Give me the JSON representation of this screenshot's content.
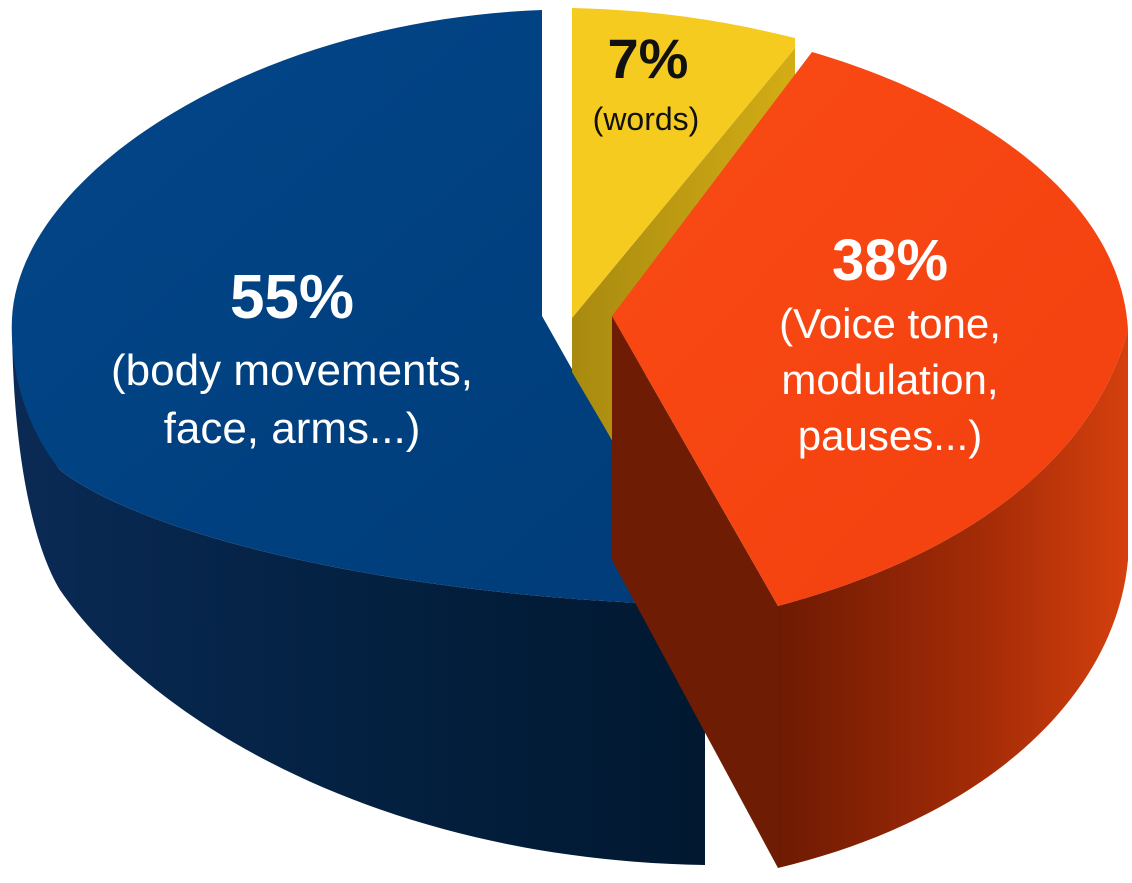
{
  "chart_data": {
    "type": "pie",
    "style": "3d-exploded",
    "slices": [
      {
        "key": "words",
        "value": 7,
        "percent_label": "7%",
        "desc": [
          "(words)"
        ],
        "color": "#F5CB1F",
        "side_color": "#C9A412",
        "text_color": "#111111"
      },
      {
        "key": "voice",
        "value": 38,
        "percent_label": "38%",
        "desc": [
          "(Voice tone,",
          "modulation,",
          "pauses...)"
        ],
        "color": "#F84412",
        "side_color": "#8E2406",
        "text_color": "#ffffff"
      },
      {
        "key": "body",
        "value": 55,
        "percent_label": "55%",
        "desc": [
          "(body movements,",
          "face, arms...)"
        ],
        "color": "#00417F",
        "side_color": "#042347",
        "text_color": "#ffffff"
      }
    ]
  }
}
